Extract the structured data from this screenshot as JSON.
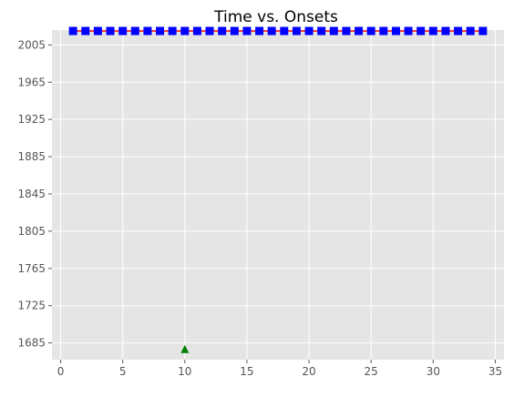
{
  "chart_data": {
    "type": "line",
    "title": "Time vs. Onsets",
    "xlabel": "",
    "ylabel": "",
    "xlim": [
      -0.7,
      35.7
    ],
    "ylim": [
      1667,
      2021
    ],
    "x_ticks": [
      0,
      5,
      10,
      15,
      20,
      25,
      30,
      35
    ],
    "y_ticks": [
      1685,
      1725,
      1765,
      1805,
      1845,
      1885,
      1925,
      1965,
      2005
    ],
    "grid": true,
    "series": [
      {
        "marker": "square",
        "color": "#0000ff",
        "line_color": "#ff0000",
        "x": [
          1,
          2,
          3,
          4,
          5,
          6,
          7,
          8,
          9,
          10,
          11,
          12,
          13,
          14,
          15,
          16,
          17,
          18,
          19,
          20,
          21,
          22,
          23,
          24,
          25,
          26,
          27,
          28,
          29,
          30,
          31,
          32,
          33,
          34
        ],
        "y": [
          2020,
          2020,
          2020,
          2020,
          2020,
          2020,
          2020,
          2020,
          2020,
          2020,
          2020,
          2020,
          2020,
          2020,
          2020,
          2020,
          2020,
          2020,
          2020,
          2020,
          2020,
          2020,
          2020,
          2020,
          2020,
          2020,
          2020,
          2020,
          2020,
          2020,
          2020,
          2020,
          2020,
          2020
        ]
      },
      {
        "marker": "triangle",
        "color": "#008000",
        "x": [
          10
        ],
        "y": [
          1678
        ]
      }
    ]
  }
}
